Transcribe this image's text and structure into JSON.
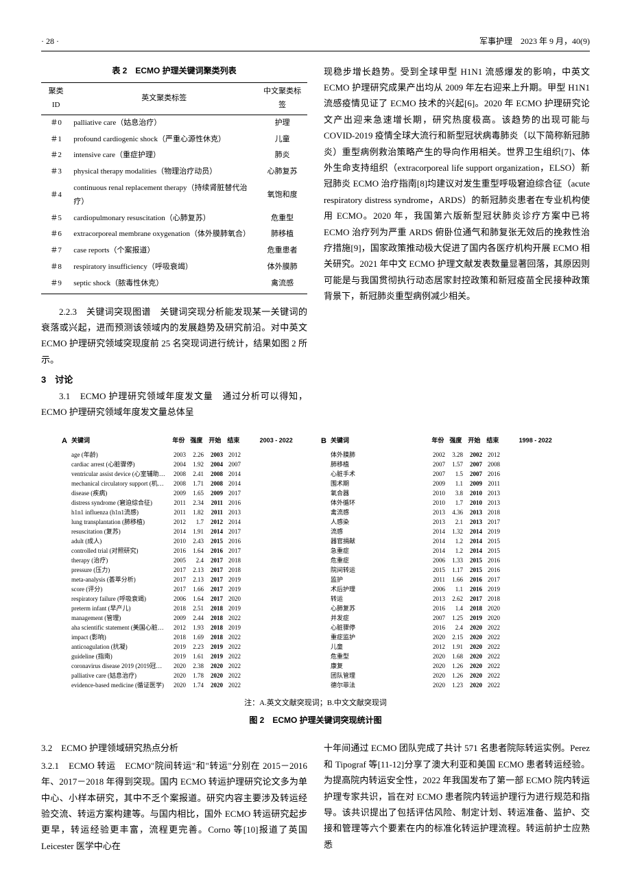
{
  "header": {
    "page": "· 28 ·",
    "journal": "军事护理　2023 年 9 月，40(9)"
  },
  "table2": {
    "title": "表 2　ECMO 护理关键词聚类列表",
    "headers": [
      "聚类 ID",
      "英文聚类标签",
      "中文聚类标签"
    ],
    "rows": [
      [
        "＃0",
        "palliative care（姑息治疗）",
        "护理"
      ],
      [
        "＃1",
        "profound cardiogenic shock（严重心源性休克）",
        "儿童"
      ],
      [
        "＃2",
        "intensive care（重症护理）",
        "肺炎"
      ],
      [
        "＃3",
        "physical therapy modalities（物理治疗动员）",
        "心肺复苏"
      ],
      [
        "＃4",
        "continuous renal replacement therapy（持续肾脏替代治疗）",
        "氧饱和度"
      ],
      [
        "＃5",
        "cardiopulmonary resuscitation（心肺复苏）",
        "危重型"
      ],
      [
        "＃6",
        "extracorporeal membrane oxygenation（体外膜肺氧合）",
        "肺移植"
      ],
      [
        "＃7",
        "case reports（个案报道）",
        "危重患者"
      ],
      [
        "＃8",
        "respiratory insufficiency（呼吸衰竭）",
        "体外膜肺"
      ],
      [
        "＃9",
        "septic shock（脓毒性休克）",
        "禽流感"
      ]
    ]
  },
  "left_text": {
    "p223": "2.2.3　关键词突现图谱　关键词突现分析能发现某一关键词的衰落或兴起，进而预测该领域内的发展趋势及研究前沿。对中英文 ECMO 护理研究领域突现度前 25 名突现词进行统计，结果如图 2 所示。",
    "h3": "3　讨论",
    "p31a": "3.1　ECMO 护理研究领域年度发文量　通过分析可以得知，ECMO 护理研究领域年度发文量总体呈"
  },
  "right_text": {
    "p": "现稳步增长趋势。受到全球甲型 H1N1 流感爆发的影响，中英文 ECMO 护理研究成果产出均从 2009 年左右迎来上升期。甲型 H1N1 流感疫情见证了 ECMO 技术的兴起[6]。2020 年 ECMO 护理研究论文产出迎来急速增长期，研究热度极高。该趋势的出现可能与 COVID-2019 疫情全球大流行和新型冠状病毒肺炎（以下简称新冠肺炎）重型病例救治策略产生的导向作用相关。世界卫生组织[7]、体外生命支持组织（extracorporeal life support organization，ELSO）新冠肺炎 ECMO 治疗指南[8]均建议对发生重型呼吸窘迫综合征（acute respiratory distress syndrome，ARDS）的新冠肺炎患者在专业机构使用 ECMO。2020 年，我国第六版新型冠状肺炎诊疗方案中已将 ECMO 治疗列为严重 ARDS 俯卧位通气和肺复张无效后的挽救性治疗措施[9]，国家政策推动极大促进了国内各医疗机构开展 ECMO 相关研究。2021 年中文 ECMO 护理文献发表数量显著回落，其原因则可能是与我国贯彻执行动态居家封控政策和新冠疫苗全民接种政策背景下，新冠肺炎重型病例减少相关。"
  },
  "figure2": {
    "note": "注：A.英文文献突现词；B.中文文献突现词",
    "caption": "图 2　ECMO 护理关键词突现统计图",
    "panelA": {
      "label": "A",
      "headers": {
        "kw": "关键词",
        "yr": "年份",
        "st": "强度",
        "s": "开始",
        "e": "结束",
        "range": "2003 - 2022"
      },
      "range_start": 2003,
      "range_end": 2022,
      "rows": [
        {
          "kw": "age (年龄)",
          "yr": 2003,
          "st": "2.26",
          "s": 2003,
          "e": 2012
        },
        {
          "kw": "cardiac arrest (心脏骤停)",
          "yr": 2004,
          "st": "1.92",
          "s": 2004,
          "e": 2007
        },
        {
          "kw": "ventricular assist device (心室辅助装置)",
          "yr": 2008,
          "st": "2.41",
          "s": 2008,
          "e": 2014
        },
        {
          "kw": "mechanical circulatory support (机械循环支持)",
          "yr": 2008,
          "st": "1.71",
          "s": 2008,
          "e": 2014
        },
        {
          "kw": "disease (疾病)",
          "yr": 2009,
          "st": "1.65",
          "s": 2009,
          "e": 2017
        },
        {
          "kw": "distress syndrome (窘迫综合征)",
          "yr": 2011,
          "st": "2.34",
          "s": 2011,
          "e": 2016
        },
        {
          "kw": "h1n1 influenza (h1n1流感)",
          "yr": 2011,
          "st": "1.82",
          "s": 2011,
          "e": 2013
        },
        {
          "kw": "lung transplantation (肺移植)",
          "yr": 2012,
          "st": "1.7",
          "s": 2012,
          "e": 2014
        },
        {
          "kw": "resuscitation (复苏)",
          "yr": 2014,
          "st": "1.91",
          "s": 2014,
          "e": 2017
        },
        {
          "kw": "adult (成人)",
          "yr": 2010,
          "st": "2.43",
          "s": 2015,
          "e": 2016
        },
        {
          "kw": "controlled trial (对照研究)",
          "yr": 2016,
          "st": "1.64",
          "s": 2016,
          "e": 2017
        },
        {
          "kw": "therapy (治疗)",
          "yr": 2005,
          "st": "2.4",
          "s": 2017,
          "e": 2018
        },
        {
          "kw": "pressure (压力)",
          "yr": 2017,
          "st": "2.13",
          "s": 2017,
          "e": 2018
        },
        {
          "kw": "meta-analysis (荟萃分析)",
          "yr": 2017,
          "st": "2.13",
          "s": 2017,
          "e": 2019
        },
        {
          "kw": "score (评分)",
          "yr": 2017,
          "st": "1.66",
          "s": 2017,
          "e": 2019
        },
        {
          "kw": "respiratory failure (呼吸衰竭)",
          "yr": 2006,
          "st": "1.64",
          "s": 2017,
          "e": 2020
        },
        {
          "kw": "preterm infant (早产儿)",
          "yr": 2018,
          "st": "2.51",
          "s": 2018,
          "e": 2019
        },
        {
          "kw": "management (管理)",
          "yr": 2009,
          "st": "2.44",
          "s": 2018,
          "e": 2022
        },
        {
          "kw": "aha scientific statement (美国心脏学会科学声明)",
          "yr": 2012,
          "st": "1.93",
          "s": 2018,
          "e": 2019
        },
        {
          "kw": "impact (影响)",
          "yr": 2018,
          "st": "1.69",
          "s": 2018,
          "e": 2022
        },
        {
          "kw": "anticoagulation (抗凝)",
          "yr": 2019,
          "st": "2.23",
          "s": 2019,
          "e": 2022
        },
        {
          "kw": "guideline (指南)",
          "yr": 2019,
          "st": "1.61",
          "s": 2019,
          "e": 2022
        },
        {
          "kw": "coronavirus disease 2019 (2019冠状病毒病)",
          "yr": 2020,
          "st": "2.38",
          "s": 2020,
          "e": 2022
        },
        {
          "kw": "palliative care (姑息治疗)",
          "yr": 2020,
          "st": "1.78",
          "s": 2020,
          "e": 2022
        },
        {
          "kw": "evidence-based medicine (循证医学)",
          "yr": 2020,
          "st": "1.74",
          "s": 2020,
          "e": 2022
        }
      ]
    },
    "panelB": {
      "label": "B",
      "headers": {
        "kw": "关键词",
        "yr": "年份",
        "st": "强度",
        "s": "开始",
        "e": "结束",
        "range": "1998 - 2022"
      },
      "range_start": 1998,
      "range_end": 2022,
      "rows": [
        {
          "kw": "体外膜肺",
          "yr": 2002,
          "st": "3.28",
          "s": 2002,
          "e": 2012
        },
        {
          "kw": "肺移植",
          "yr": 2007,
          "st": "1.57",
          "s": 2007,
          "e": 2008
        },
        {
          "kw": "心脏手术",
          "yr": 2007,
          "st": "1.5",
          "s": 2007,
          "e": 2016
        },
        {
          "kw": "围术期",
          "yr": 2009,
          "st": "1.1",
          "s": 2009,
          "e": 2011
        },
        {
          "kw": "氧合器",
          "yr": 2010,
          "st": "3.8",
          "s": 2010,
          "e": 2013
        },
        {
          "kw": "体外循环",
          "yr": 2010,
          "st": "1.7",
          "s": 2010,
          "e": 2013
        },
        {
          "kw": "禽流感",
          "yr": 2013,
          "st": "4.36",
          "s": 2013,
          "e": 2018
        },
        {
          "kw": "人感染",
          "yr": 2013,
          "st": "2.1",
          "s": 2013,
          "e": 2017
        },
        {
          "kw": "流感",
          "yr": 2014,
          "st": "1.32",
          "s": 2014,
          "e": 2019
        },
        {
          "kw": "器官捐献",
          "yr": 2014,
          "st": "1.2",
          "s": 2014,
          "e": 2015
        },
        {
          "kw": "急重症",
          "yr": 2014,
          "st": "1.2",
          "s": 2014,
          "e": 2015
        },
        {
          "kw": "危重症",
          "yr": 2006,
          "st": "1.33",
          "s": 2015,
          "e": 2016
        },
        {
          "kw": "院间转运",
          "yr": 2015,
          "st": "1.17",
          "s": 2015,
          "e": 2016
        },
        {
          "kw": "监护",
          "yr": 2011,
          "st": "1.66",
          "s": 2016,
          "e": 2017
        },
        {
          "kw": "术后护理",
          "yr": 2006,
          "st": "1.1",
          "s": 2016,
          "e": 2019
        },
        {
          "kw": "转运",
          "yr": 2013,
          "st": "2.62",
          "s": 2017,
          "e": 2018
        },
        {
          "kw": "心肺复苏",
          "yr": 2016,
          "st": "1.4",
          "s": 2018,
          "e": 2020
        },
        {
          "kw": "并发症",
          "yr": 2007,
          "st": "1.25",
          "s": 2019,
          "e": 2020
        },
        {
          "kw": "心脏骤停",
          "yr": 2016,
          "st": "2.4",
          "s": 2020,
          "e": 2022
        },
        {
          "kw": "重症监护",
          "yr": 2020,
          "st": "2.15",
          "s": 2020,
          "e": 2022
        },
        {
          "kw": "儿童",
          "yr": 2012,
          "st": "1.91",
          "s": 2020,
          "e": 2022
        },
        {
          "kw": "危重型",
          "yr": 2020,
          "st": "1.68",
          "s": 2020,
          "e": 2022
        },
        {
          "kw": "康复",
          "yr": 2020,
          "st": "1.26",
          "s": 2020,
          "e": 2022
        },
        {
          "kw": "团队管理",
          "yr": 2020,
          "st": "1.26",
          "s": 2020,
          "e": 2022
        },
        {
          "kw": "德尔菲法",
          "yr": 2020,
          "st": "1.23",
          "s": 2020,
          "e": 2022
        }
      ]
    },
    "colors": {
      "base_bar": "#e0e0e0",
      "burst_bar": "#c0392b"
    }
  },
  "bottom_left": {
    "h32": "3.2　ECMO 护理领域研究热点分析",
    "p321": "3.2.1　ECMO 转运　ECMO\"院间转运\"和\"转运\"分别在 2015－2016 年、2017－2018 年得到突现。国内 ECMO 转运护理研究论文多为单中心、小样本研究，其中不乏个案报道。研究内容主要涉及转运经验交流、转运方案构建等。与国内相比，国外 ECMO 转运研究起步更早，转运经验更丰富，流程更完善。Corno 等[10]报道了英国 Leicester 医学中心在"
  },
  "bottom_right": {
    "p": "十年间通过 ECMO 团队完成了共计 571 名患者院际转运实例。Perez 和 Tipograf 等[11-12]分享了澳大利亚和美国 ECMO 患者转运经验。为提高院内转运安全性，2022 年我国发布了第一部 ECMO 院内转运护理专家共识，旨在对 ECMO 患者院内转运护理行为进行规范和指导。该共识提出了包括评估风险、制定计划、转运准备、监护、交接和管理等六个要素在内的标准化转运护理流程。转运前护士应熟悉"
  }
}
